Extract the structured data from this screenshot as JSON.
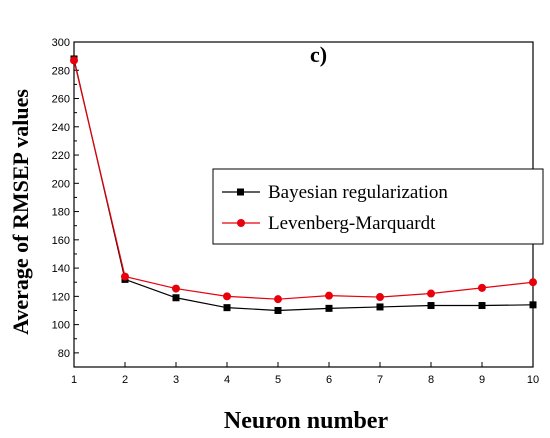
{
  "chart_data": {
    "type": "line",
    "panel_label": "c)",
    "title": "",
    "xlabel": "Neuron number",
    "ylabel": "Average of RMSEP values",
    "x": [
      1,
      2,
      3,
      4,
      5,
      6,
      7,
      8,
      9,
      10
    ],
    "xlim": [
      1,
      10
    ],
    "ylim": [
      70,
      300
    ],
    "yticks": [
      80,
      100,
      120,
      140,
      160,
      180,
      200,
      220,
      240,
      260,
      280,
      300
    ],
    "grid": false,
    "legend_position": "right",
    "series": [
      {
        "name": "Bayesian regularization",
        "marker": "square",
        "color": "#000000",
        "values": [
          288,
          132,
          119,
          112,
          110,
          111.5,
          112.5,
          113.5,
          113.5,
          114
        ]
      },
      {
        "name": "Levenberg-Marquardt",
        "marker": "circle",
        "color": "#e8000b",
        "values": [
          287,
          134,
          125.5,
          120,
          118,
          120.5,
          119.5,
          122,
          126,
          130
        ]
      }
    ]
  }
}
